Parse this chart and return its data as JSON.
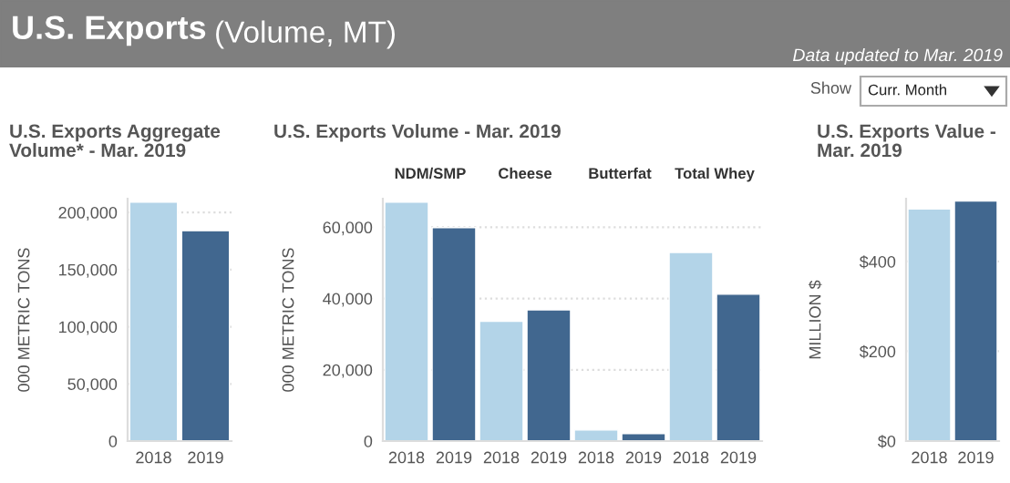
{
  "chart_data": [
    {
      "type": "other",
      "title": "U.S. Exports",
      "subtitle": "(Volume, MT)",
      "annotations": [
        "Data updated to Mar. 2019",
        "Show",
        "Curr. Month"
      ]
    },
    {
      "type": "bar",
      "title": "U.S. Exports Aggregate\nVolume* - Mar. 2019",
      "ylabel": "000 METRIC TONS",
      "categories": [
        "2018",
        "2019"
      ],
      "values": [
        209000,
        184000
      ],
      "colors": [
        "#b3d4e8",
        "#41678f"
      ],
      "ylim": [
        0,
        212000
      ],
      "yticks": [
        {
          "value": 0,
          "label": "0"
        },
        {
          "value": 50000,
          "label": "50,000"
        },
        {
          "value": 100000,
          "label": "100,000"
        },
        {
          "value": 150000,
          "label": "150,000"
        },
        {
          "value": 200000,
          "label": "200,000"
        }
      ],
      "grid": "y"
    },
    {
      "type": "bar",
      "title": "U.S. Exports Volume - Mar. 2019",
      "ylabel": "000 METRIC TONS",
      "categories": [
        "2018",
        "2019",
        "2018",
        "2019",
        "2018",
        "2019",
        "2018",
        "2019"
      ],
      "values": [
        67000,
        59900,
        33600,
        36800,
        3100,
        2100,
        52900,
        41200
      ],
      "colors": [
        "#b3d4e8",
        "#41678f",
        "#b3d4e8",
        "#41678f",
        "#b3d4e8",
        "#41678f",
        "#b3d4e8",
        "#41678f"
      ],
      "ylim": [
        0,
        68000
      ],
      "yticks": [
        {
          "value": 0,
          "label": "0"
        },
        {
          "value": 20000,
          "label": "20,000"
        },
        {
          "value": 40000,
          "label": "40,000"
        },
        {
          "value": 60000,
          "label": "60,000"
        }
      ],
      "grid": "y",
      "annotations": [
        "NDM/SMP",
        "Cheese",
        "Butterfat",
        "Total Whey"
      ]
    },
    {
      "type": "bar",
      "title": "U.S. Exports Value -\nMar. 2019",
      "ylabel": "MILLION $",
      "categories": [
        "2018",
        "2019"
      ],
      "values": [
        517,
        535
      ],
      "colors": [
        "#b3d4e8",
        "#41678f"
      ],
      "ylim": [
        0,
        540
      ],
      "yticks": [
        {
          "value": 0,
          "label": "$0"
        },
        {
          "value": 200,
          "label": "$200"
        },
        {
          "value": 400,
          "label": "$400"
        }
      ],
      "grid": "y"
    }
  ]
}
